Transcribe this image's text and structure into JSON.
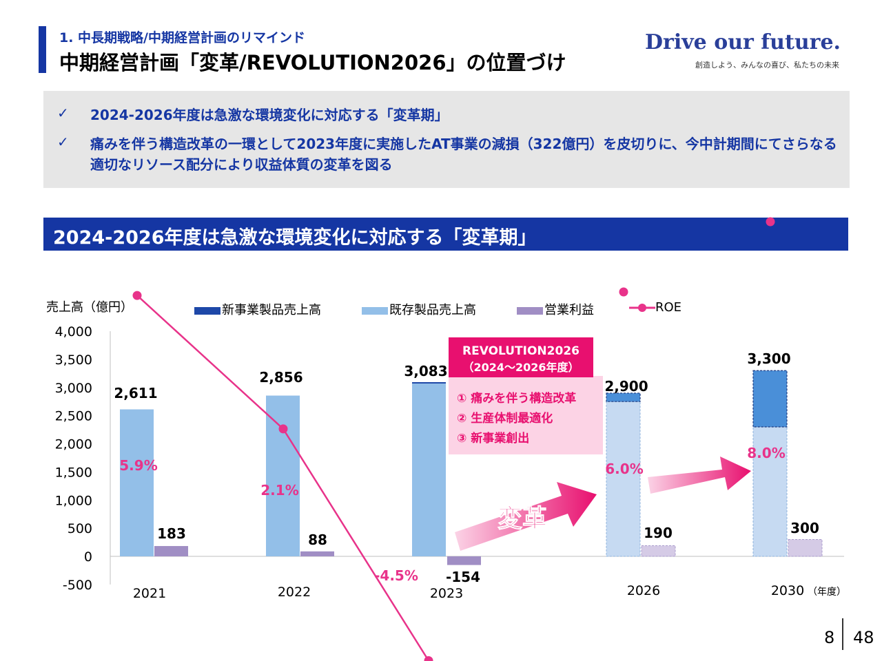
{
  "header": {
    "section": "1.  中長期戦略/中期経営計画のリマインド",
    "title": "中期経営計画「変革/REVOLUTION2026」の位置づけ",
    "brand": "Drive our future.",
    "brand_sub": "創造しよう、みんなの喜び、私たちの未来"
  },
  "summary": {
    "check_icon": "✓",
    "bullets": [
      "2024-2026年度は急激な環境変化に対応する「変革期」",
      "痛みを伴う構造改革の一環として2023年度に実施したAT事業の減損（322億円）を皮切りに、今中計期間にてさらなる適切なリソース配分により収益体質の変革を図る"
    ]
  },
  "band_title": "2024-2026年度は急激な環境変化に対応する「変革期」",
  "chart_data": {
    "type": "bar",
    "ylabel": "売上高（億円）",
    "xunit": "（年度）",
    "ylim": [
      -500,
      4000
    ],
    "yticks": [
      "4,000",
      "3,500",
      "3,000",
      "2,500",
      "2,000",
      "1,500",
      "1,000",
      "500",
      "0",
      "-500"
    ],
    "categories": [
      "2021",
      "2022",
      "2023",
      "2026",
      "2030"
    ],
    "legend": [
      "新事業製品売上高",
      "既存製品売上高",
      "営業利益",
      "ROE"
    ],
    "series": [
      {
        "name": "新事業製品売上高",
        "values": [
          0,
          0,
          0,
          150,
          1000
        ]
      },
      {
        "name": "既存製品売上高",
        "values": [
          2611,
          2856,
          3083,
          2750,
          2300
        ]
      },
      {
        "name": "営業利益",
        "values": [
          183,
          88,
          -154,
          190,
          300
        ]
      },
      {
        "name": "ROE",
        "values": [
          5.9,
          2.1,
          -4.5,
          6.0,
          8.0
        ]
      }
    ],
    "sales_labels": [
      "2,611",
      "2,856",
      "3,083",
      "2,900",
      "3,300"
    ],
    "profit_labels": [
      "183",
      "88",
      "-154",
      "190",
      "300"
    ],
    "roe_labels": [
      "5.9%",
      "2.1%",
      "-4.5%",
      "6.0%",
      "8.0%"
    ],
    "plan_years": [
      "2026",
      "2030"
    ],
    "callout": {
      "title1": "REVOLUTION2026",
      "title2": "（2024～2026年度）",
      "items": [
        "① 痛みを伴う構造改革",
        "② 生産体制最適化",
        "③ 新事業創出"
      ]
    },
    "arrow_label": "変革",
    "colors": {
      "new": "#1e48a8",
      "existing": "#93bfe8",
      "profit": "#a08ec4",
      "roe": "#e8338a",
      "plan_existing": "#c6daf2",
      "plan_new": "#4a8fd8",
      "plan_profit": "#d5cbe6"
    }
  },
  "page": {
    "current": "8",
    "total": "48"
  }
}
